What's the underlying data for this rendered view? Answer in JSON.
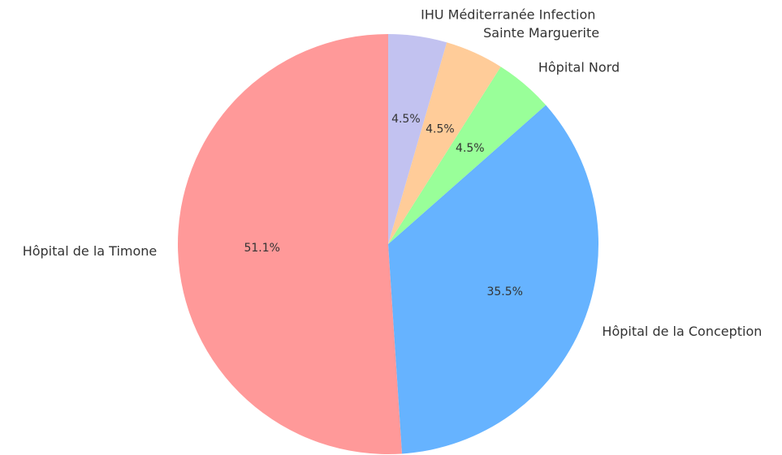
{
  "chart_data": {
    "type": "pie",
    "categories": [
      "Hôpital de la Timone",
      "Hôpital de la Conception",
      "Hôpital Nord",
      "Sainte Marguerite",
      "IHU Méditerranée Infection"
    ],
    "values": [
      51.1,
      35.5,
      4.5,
      4.5,
      4.5
    ],
    "value_labels": [
      "51.1%",
      "35.5%",
      "4.5%",
      "4.5%",
      "4.5%"
    ],
    "colors": [
      "#ff9999",
      "#66b3ff",
      "#99ff99",
      "#ffcc99",
      "#c2c2f0"
    ]
  }
}
